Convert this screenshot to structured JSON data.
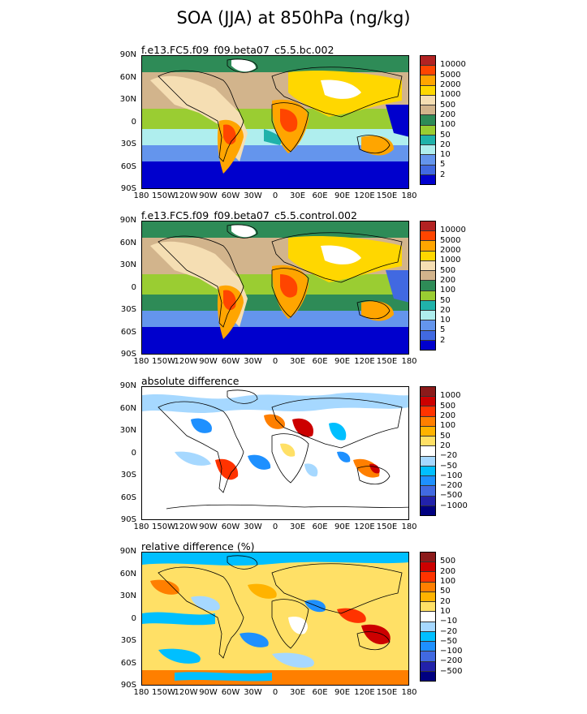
{
  "title": "SOA (JJA) at 850hPa (ng/kg)",
  "lat_labels": [
    "90N",
    "60N",
    "30N",
    "0",
    "30S",
    "60S",
    "90S"
  ],
  "lon_labels": [
    "180",
    "150W",
    "120W",
    "90W",
    "60W",
    "30W",
    "0",
    "30E",
    "60E",
    "90E",
    "120E",
    "150E",
    "180"
  ],
  "panels": [
    {
      "id": "bc",
      "subtitle": "f.e13.FC5.f09_f09.beta07_c5.5.bc.002",
      "legend_levels": [
        "10000",
        "5000",
        "2000",
        "1000",
        "500",
        "200",
        "100",
        "50",
        "20",
        "10",
        "5",
        "2"
      ],
      "legend_colors": [
        "#b22222",
        "#ff4500",
        "#ffa500",
        "#ffd700",
        "#f5deb3",
        "#d2b48c",
        "#2e8b57",
        "#9acd32",
        "#20b2aa",
        "#afeeee",
        "#6495ed",
        "#4169e1",
        "#0000cd"
      ]
    },
    {
      "id": "control",
      "subtitle": "f.e13.FC5.f09_f09.beta07_c5.5.control.002",
      "legend_levels": [
        "10000",
        "5000",
        "2000",
        "1000",
        "500",
        "200",
        "100",
        "50",
        "20",
        "10",
        "5",
        "2"
      ],
      "legend_colors": [
        "#b22222",
        "#ff4500",
        "#ffa500",
        "#ffd700",
        "#f5deb3",
        "#d2b48c",
        "#2e8b57",
        "#9acd32",
        "#20b2aa",
        "#afeeee",
        "#6495ed",
        "#4169e1",
        "#0000cd"
      ]
    },
    {
      "id": "absdiff",
      "subtitle": "absolute difference",
      "legend_levels": [
        "1000",
        "500",
        "200",
        "100",
        "50",
        "20",
        "−20",
        "−50",
        "−100",
        "−200",
        "−500",
        "−1000"
      ],
      "legend_colors": [
        "#8b1a1a",
        "#cc0000",
        "#ff3300",
        "#ff7f00",
        "#ffb300",
        "#ffe066",
        "#ffffff",
        "#a6d8ff",
        "#00bfff",
        "#1e90ff",
        "#4169e1",
        "#2222aa",
        "#000080"
      ]
    },
    {
      "id": "reldiff",
      "subtitle": "relative difference (%)",
      "legend_levels": [
        "500",
        "200",
        "100",
        "50",
        "20",
        "10",
        "−10",
        "−20",
        "−50",
        "−100",
        "−200",
        "−500"
      ],
      "legend_colors": [
        "#8b1a1a",
        "#cc0000",
        "#ff3300",
        "#ff7f00",
        "#ffb300",
        "#ffe066",
        "#ffffff",
        "#a6d8ff",
        "#00bfff",
        "#1e90ff",
        "#4169e1",
        "#2222aa",
        "#000080"
      ]
    }
  ]
}
